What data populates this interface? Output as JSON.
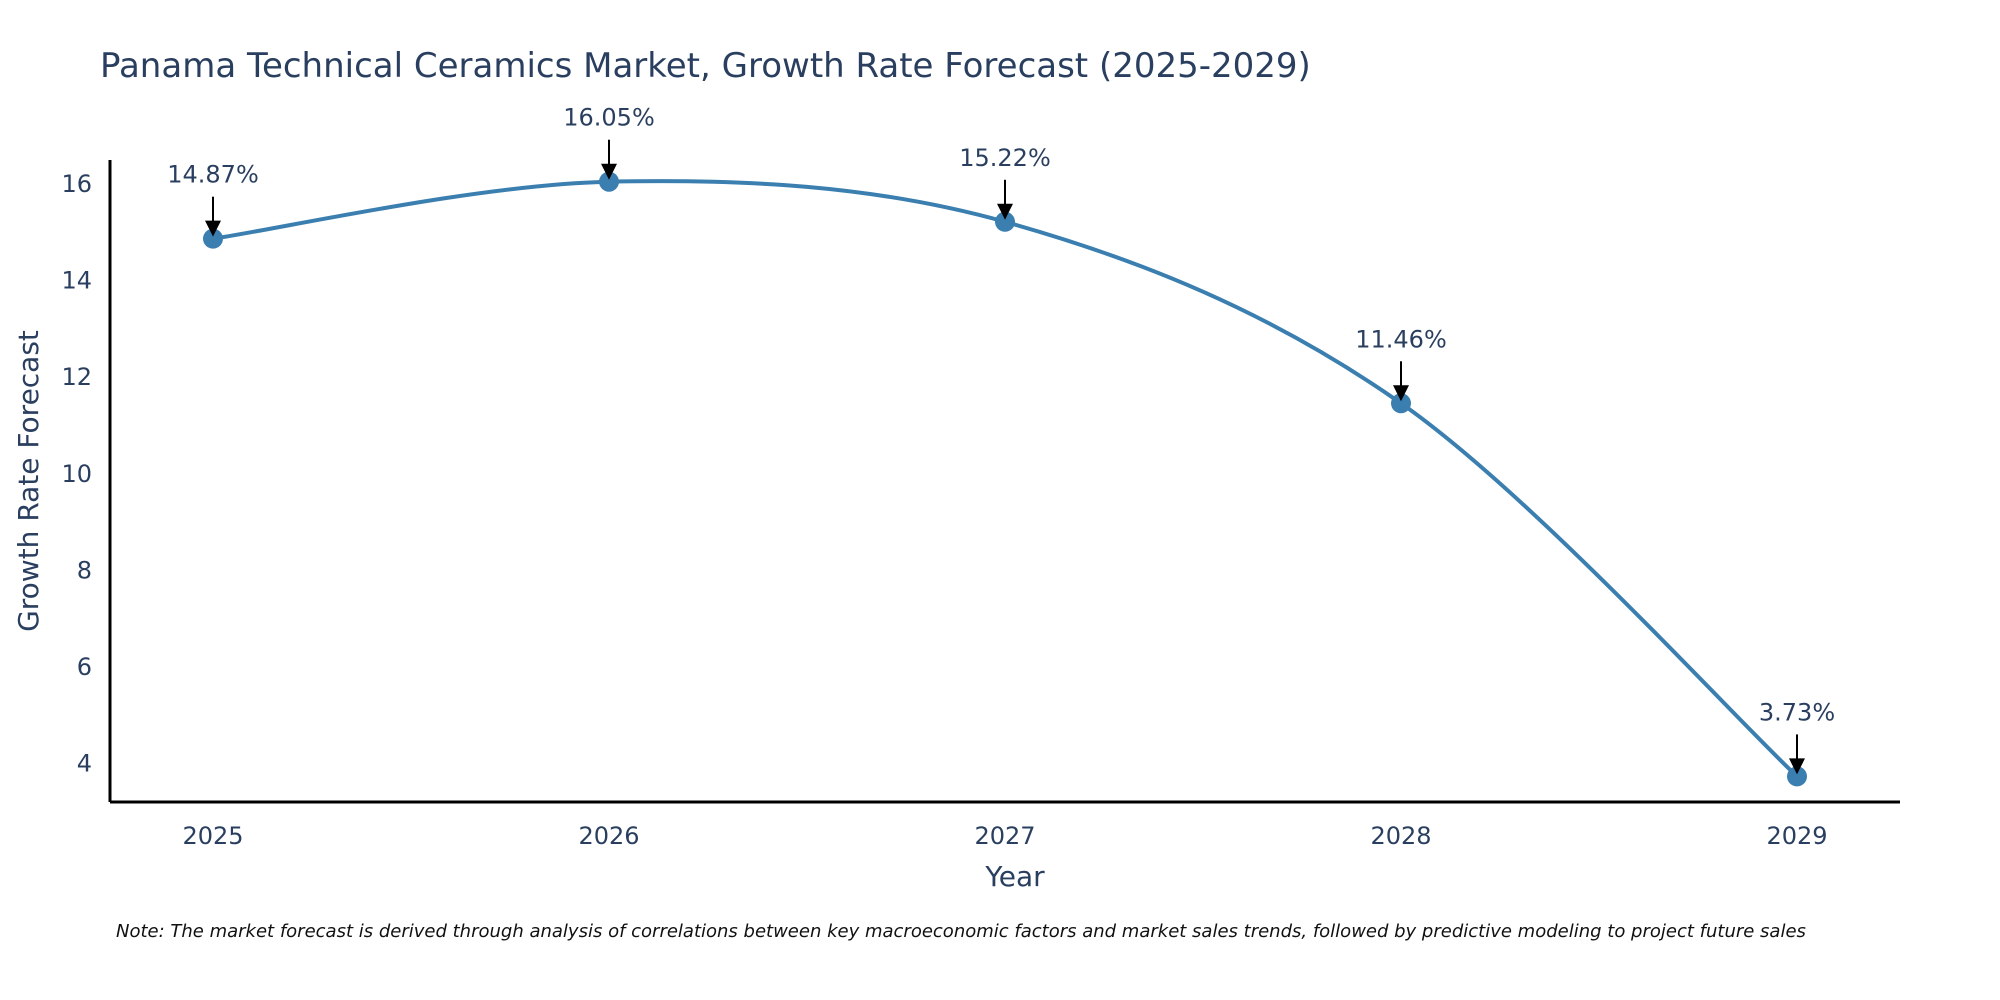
{
  "chart_data": {
    "type": "line",
    "title": "Panama Technical Ceramics Market, Growth Rate Forecast (2025-2029)",
    "xlabel": "Year",
    "ylabel": "Growth Rate Forecast",
    "categories": [
      "2025",
      "2026",
      "2027",
      "2028",
      "2029"
    ],
    "series": [
      {
        "name": "Growth Rate Forecast",
        "values": [
          14.87,
          16.05,
          15.22,
          11.46,
          3.73
        ],
        "labels": [
          "14.87%",
          "16.05%",
          "15.22%",
          "11.46%",
          "3.73%"
        ]
      }
    ],
    "ylim": [
      3.2,
      16.5
    ],
    "yticks": [
      4,
      6,
      8,
      10,
      12,
      14,
      16
    ],
    "ytick_labels": [
      "4",
      "6",
      "8",
      "10",
      "12",
      "14",
      "16"
    ],
    "grid": false,
    "line_shape": "spline",
    "line_color": "#3b7fb0",
    "marker_color": "#3b7fb0",
    "arrow_color": "#000000",
    "axis_color": "#000000",
    "text_color": "#2a3f5f"
  },
  "note": "Note: The market forecast is derived through analysis of correlations between key macroeconomic factors and market sales trends, followed by predictive modeling to project future sales"
}
